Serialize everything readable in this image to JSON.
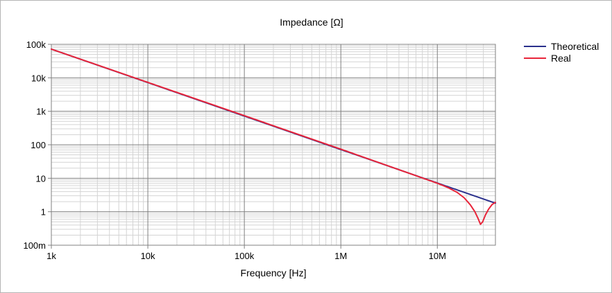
{
  "chart_data": {
    "type": "line",
    "title": "Impedance [Ω]",
    "xlabel": "Frequency [Hz]",
    "ylabel": "",
    "x_scale": "log",
    "y_scale": "log",
    "xlim": [
      1000,
      40000000
    ],
    "ylim": [
      0.1,
      100000
    ],
    "x_ticks": [
      {
        "value": 1000,
        "label": "1k"
      },
      {
        "value": 10000,
        "label": "10k"
      },
      {
        "value": 100000,
        "label": "100k"
      },
      {
        "value": 1000000,
        "label": "1M"
      },
      {
        "value": 10000000,
        "label": "10M"
      }
    ],
    "y_ticks": [
      {
        "value": 100000,
        "label": "100k"
      },
      {
        "value": 10000,
        "label": "10k"
      },
      {
        "value": 1000,
        "label": "1k"
      },
      {
        "value": 100,
        "label": "100"
      },
      {
        "value": 10,
        "label": "10"
      },
      {
        "value": 1,
        "label": "1"
      },
      {
        "value": 0.1,
        "label": "100m"
      }
    ],
    "grid": true,
    "legend_position": "top-right",
    "series": [
      {
        "name": "Theoretical",
        "color": "#2a2f8c",
        "x": [
          1000,
          10000,
          100000,
          1000000,
          10000000,
          40000000
        ],
        "y": [
          72000,
          7200,
          720,
          72,
          7.2,
          1.8
        ]
      },
      {
        "name": "Real",
        "color": "#e8253a",
        "x": [
          1000,
          10000,
          100000,
          1000000,
          10000000,
          13000000,
          16000000,
          19000000,
          22000000,
          24500000,
          26500000,
          28000000,
          29500000,
          31500000,
          34000000,
          37000000,
          40000000
        ],
        "y": [
          72000,
          7300,
          740,
          74,
          7.1,
          5.2,
          3.8,
          2.6,
          1.6,
          1.0,
          0.62,
          0.42,
          0.5,
          0.8,
          1.2,
          1.65,
          1.9
        ]
      }
    ]
  }
}
